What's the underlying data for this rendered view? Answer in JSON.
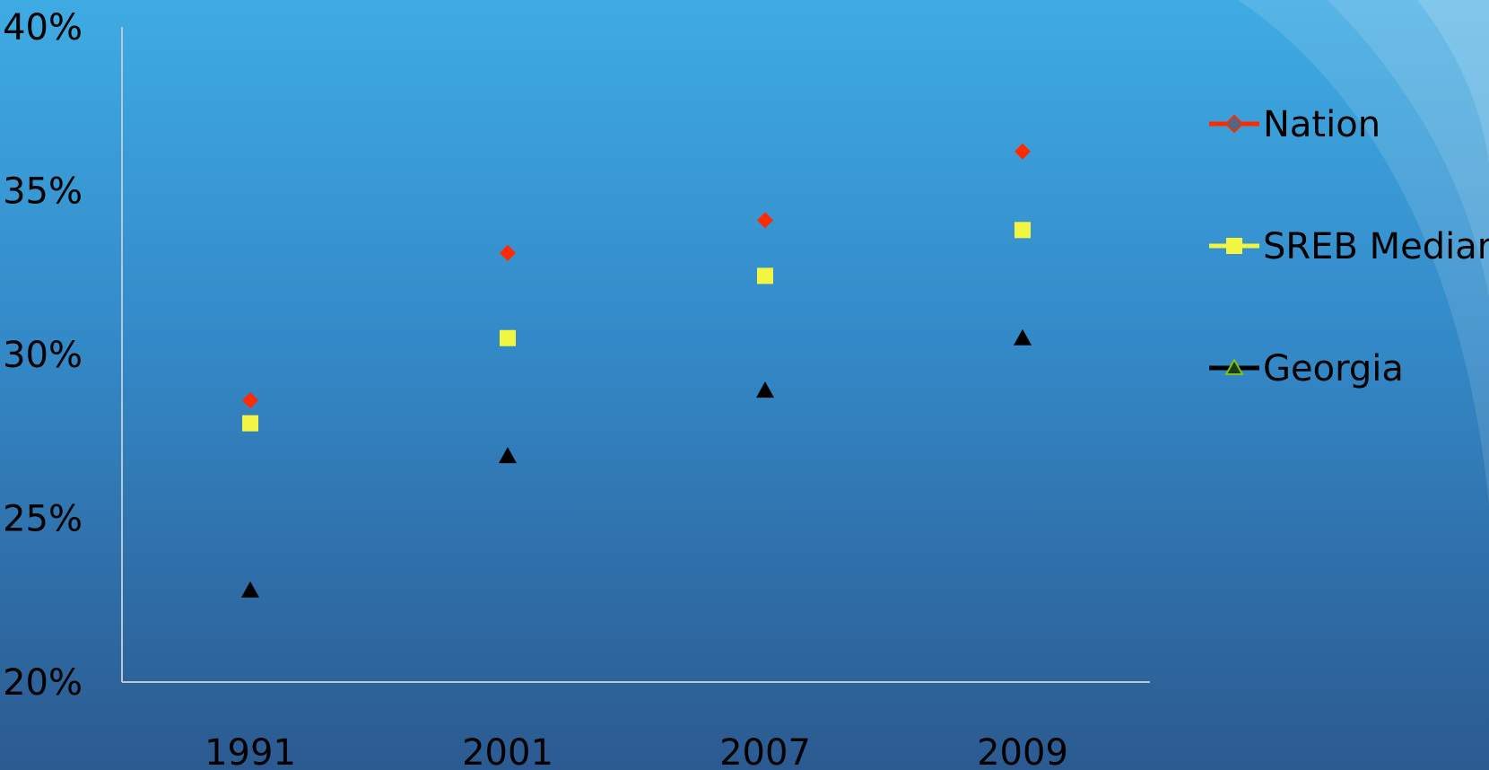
{
  "chart_data": {
    "type": "scatter",
    "title": "",
    "xlabel": "",
    "ylabel": "",
    "categories": [
      "1991",
      "2001",
      "2007",
      "2009"
    ],
    "ylim": [
      0.2,
      0.4
    ],
    "y_ticks": [
      "20%",
      "25%",
      "30%",
      "35%",
      "40%"
    ],
    "grid": false,
    "legend_position": "right",
    "series": [
      {
        "name": "Nation",
        "values": [
          0.286,
          0.331,
          0.341,
          0.362
        ],
        "color": "#ff2a00",
        "marker": "diamond"
      },
      {
        "name": "SREB Median",
        "values": [
          0.279,
          0.305,
          0.324,
          0.338
        ],
        "color": "#f2f542",
        "marker": "square"
      },
      {
        "name": "Georgia",
        "values": [
          0.228,
          0.269,
          0.289,
          0.305
        ],
        "color": "#000000",
        "marker": "triangle"
      }
    ]
  },
  "colors": {
    "axis": "#b9c8d6",
    "background_top": "#3fabe3",
    "background_bottom": "#2b5a90"
  }
}
